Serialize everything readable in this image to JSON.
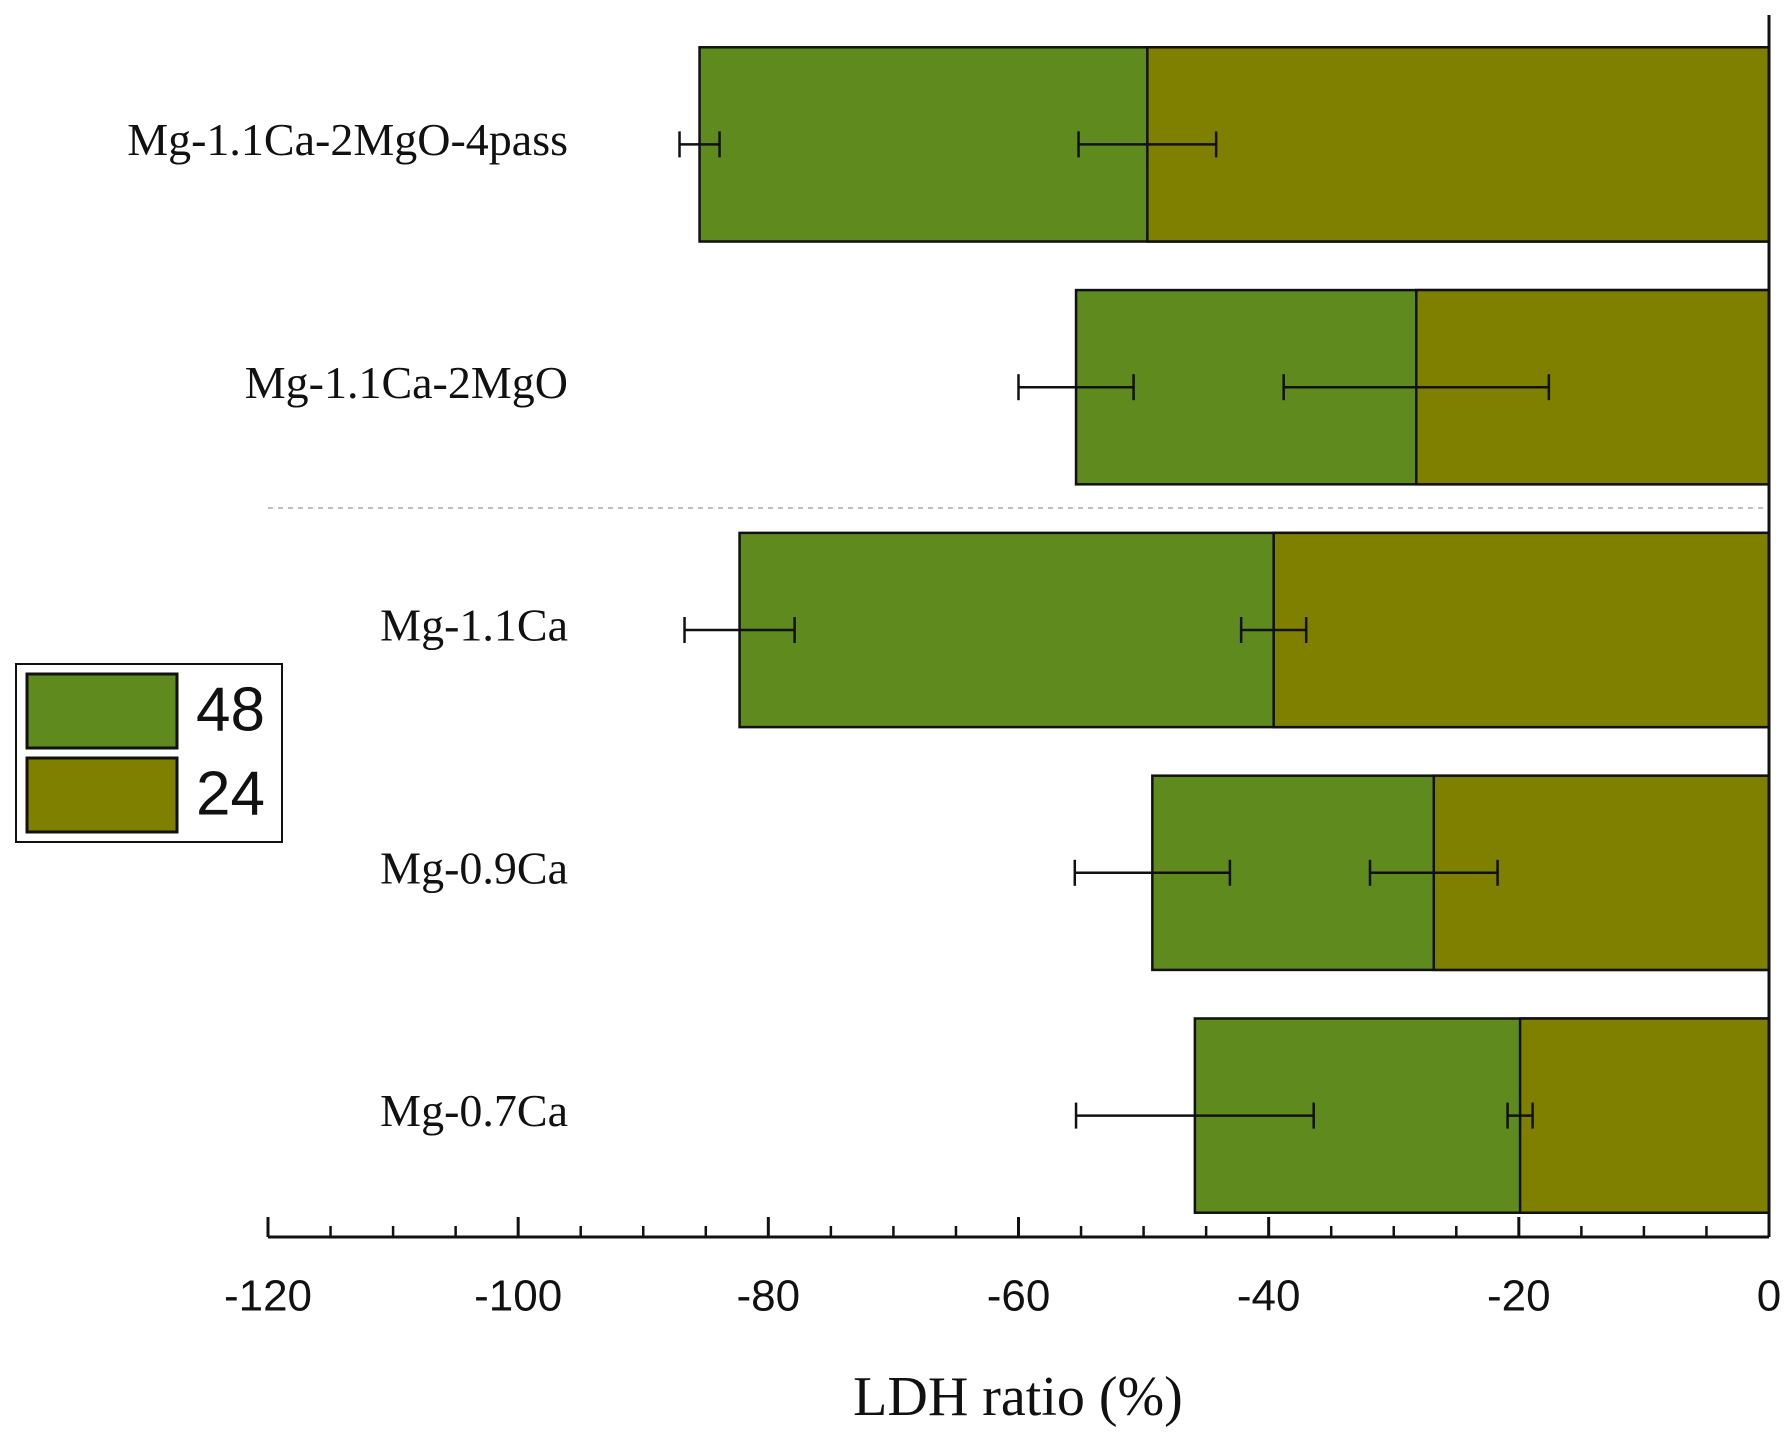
{
  "chart_data": {
    "type": "bar",
    "orientation": "horizontal",
    "categories": [
      "Mg-1.1Ca-2MgO-4pass",
      "Mg-1.1Ca-2MgO",
      "Mg-1.1Ca",
      "Mg-0.9Ca",
      "Mg-0.7Ca"
    ],
    "series": [
      {
        "name": "48",
        "color": "#5e8a1e",
        "values": [
          -85.5,
          -55.4,
          -82.3,
          -49.3,
          -45.9
        ],
        "errors": [
          1.6,
          4.6,
          4.4,
          6.2,
          9.5
        ]
      },
      {
        "name": "24",
        "color": "#808000",
        "values": [
          -49.7,
          -28.2,
          -39.6,
          -26.8,
          -19.9
        ],
        "errors": [
          5.5,
          10.6,
          2.6,
          5.1,
          1.0
        ]
      }
    ],
    "xlabel": "LDH ratio (%)",
    "xlim": [
      -120,
      0
    ],
    "xticks": [
      -120,
      -100,
      -80,
      -60,
      -40,
      -20,
      0
    ],
    "legend": "left"
  }
}
